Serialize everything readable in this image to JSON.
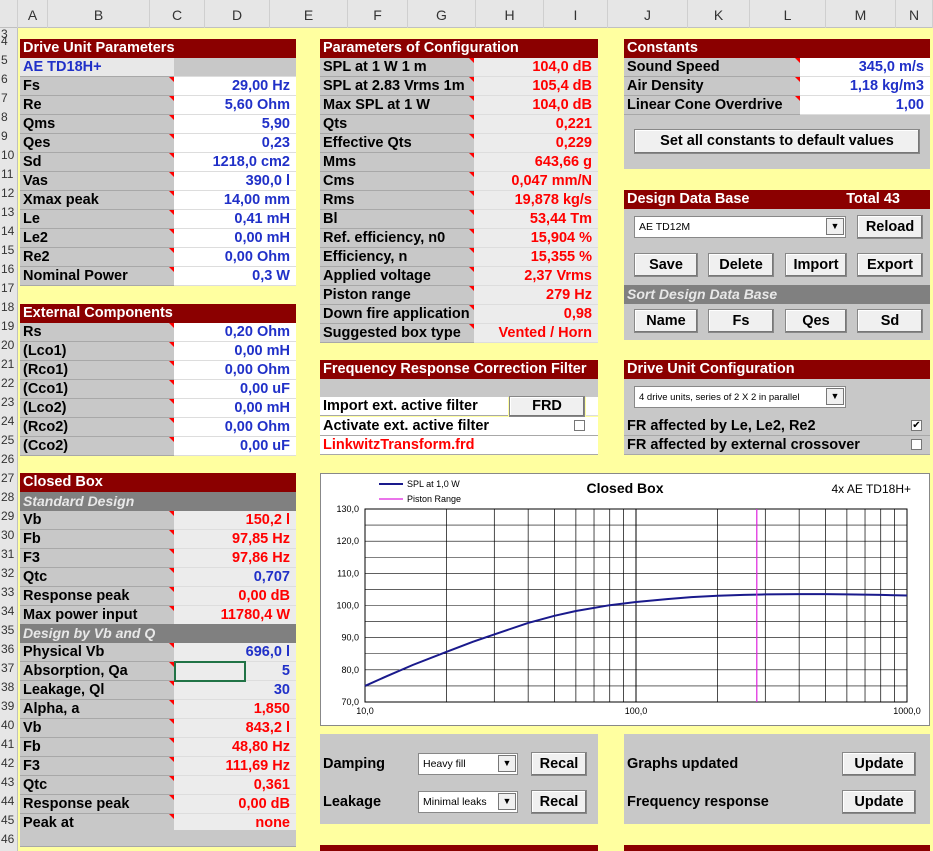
{
  "columns": [
    "A",
    "B",
    "C",
    "D",
    "E",
    "F",
    "G",
    "H",
    "I",
    "J",
    "K",
    "L",
    "M",
    "N"
  ],
  "rows": [
    "3",
    "4",
    "5",
    "6",
    "7",
    "8",
    "9",
    "10",
    "11",
    "12",
    "13",
    "14",
    "15",
    "16",
    "17",
    "18",
    "19",
    "20",
    "21",
    "22",
    "23",
    "24",
    "25",
    "26",
    "27",
    "28",
    "29",
    "30",
    "31",
    "32",
    "33",
    "34",
    "35",
    "36",
    "37",
    "38",
    "39",
    "40",
    "41",
    "42",
    "43",
    "44",
    "45",
    "46"
  ],
  "drive_unit": {
    "title": "Drive Unit Parameters",
    "model": "AE TD18H+",
    "params": [
      {
        "label": "Fs",
        "value": "29,00 Hz"
      },
      {
        "label": "Re",
        "value": "5,60 Ohm"
      },
      {
        "label": "Qms",
        "value": "5,90"
      },
      {
        "label": "Qes",
        "value": "0,23"
      },
      {
        "label": "Sd",
        "value": "1218,0 cm2"
      },
      {
        "label": "Vas",
        "value": "390,0 l"
      },
      {
        "label": "Xmax peak",
        "value": "14,00 mm"
      },
      {
        "label": "Le",
        "value": "0,41 mH"
      },
      {
        "label": "Le2",
        "value": "0,00 mH"
      },
      {
        "label": "Re2",
        "value": "0,00 Ohm"
      },
      {
        "label": "Nominal Power",
        "value": "0,3 W"
      }
    ]
  },
  "external": {
    "title": "External Components",
    "params": [
      {
        "label": "Rs",
        "value": "0,20 Ohm"
      },
      {
        "label": "(Lco1)",
        "value": "0,00 mH"
      },
      {
        "label": "(Rco1)",
        "value": "0,00 Ohm"
      },
      {
        "label": "(Cco1)",
        "value": "0,00 uF"
      },
      {
        "label": "(Lco2)",
        "value": "0,00 mH"
      },
      {
        "label": "(Rco2)",
        "value": "0,00 Ohm"
      },
      {
        "label": "(Cco2)",
        "value": "0,00 uF"
      }
    ]
  },
  "closed_box": {
    "title": "Closed Box",
    "standard_title": "Standard Design",
    "standard": [
      {
        "label": "Vb",
        "value": "150,2 l",
        "color": "red"
      },
      {
        "label": "Fb",
        "value": "97,85 Hz",
        "color": "red"
      },
      {
        "label": "F3",
        "value": "97,86 Hz",
        "color": "red"
      },
      {
        "label": "Qtc",
        "value": "0,707",
        "color": "blue"
      },
      {
        "label": "Response peak",
        "value": "0,00 dB",
        "color": "red"
      },
      {
        "label": "Max power input",
        "value": "11780,4 W",
        "color": "red"
      }
    ],
    "vbq_title": "Design by Vb and Q",
    "vbq": [
      {
        "label": "Physical Vb",
        "value": "696,0 l",
        "color": "blue"
      },
      {
        "label": "Absorption, Qa",
        "value": "5",
        "color": "blue"
      },
      {
        "label": "Leakage, Ql",
        "value": "30",
        "color": "blue"
      },
      {
        "label": "Alpha, a",
        "value": "1,850",
        "color": "red"
      },
      {
        "label": "Vb",
        "value": "843,2 l",
        "color": "red"
      },
      {
        "label": "Fb",
        "value": "48,80 Hz",
        "color": "red"
      },
      {
        "label": "F3",
        "value": "111,69 Hz",
        "color": "red"
      },
      {
        "label": "Qtc",
        "value": "0,361",
        "color": "red"
      },
      {
        "label": "Response peak",
        "value": "0,00 dB",
        "color": "red"
      },
      {
        "label": "Peak at",
        "value": "none",
        "color": "red"
      }
    ]
  },
  "config": {
    "title": "Parameters of Configuration",
    "params": [
      {
        "label": "SPL at 1 W 1 m",
        "value": "104,0 dB"
      },
      {
        "label": "SPL at 2.83 Vrms 1m",
        "value": "105,4 dB"
      },
      {
        "label": "Max SPL at 1 W",
        "value": "104,0 dB"
      },
      {
        "label": "Qts",
        "value": "0,221"
      },
      {
        "label": "Effective Qts",
        "value": "0,229"
      },
      {
        "label": "Mms",
        "value": "643,66 g"
      },
      {
        "label": "Cms",
        "value": "0,047 mm/N"
      },
      {
        "label": "Rms",
        "value": "19,878 kg/s"
      },
      {
        "label": "Bl",
        "value": "53,44 Tm"
      },
      {
        "label": "Ref. efficiency, n0",
        "value": "15,904 %"
      },
      {
        "label": "Efficiency, n",
        "value": "15,355 %"
      },
      {
        "label": "Applied voltage",
        "value": "2,37 Vrms"
      },
      {
        "label": "Piston range",
        "value": "279 Hz"
      },
      {
        "label": "Down fire application",
        "value": "0,98"
      },
      {
        "label": "Suggested box type",
        "value": "Vented / Horn"
      }
    ]
  },
  "frcf": {
    "title": "Frequency Response Correction Filter",
    "import_label": "Import ext. active filter",
    "frd_button": "FRD",
    "activate_label": "Activate ext. active filter",
    "filename": "LinkwitzTransform.frd"
  },
  "constants": {
    "title": "Constants",
    "params": [
      {
        "label": "Sound Speed",
        "value": "345,0 m/s"
      },
      {
        "label": "Air Density",
        "value": "1,18 kg/m3"
      },
      {
        "label": "Linear Cone Overdrive",
        "value": "1,00"
      }
    ],
    "reset_button": "Set all constants to default values"
  },
  "design_db": {
    "title": "Design Data Base",
    "total": "Total 43",
    "selected": "AE TD12M",
    "reload": "Reload",
    "save": "Save",
    "delete": "Delete",
    "import": "Import",
    "export": "Export",
    "sort_title": "Sort Design Data Base",
    "sort_buttons": [
      "Name",
      "Fs",
      "Qes",
      "Sd"
    ]
  },
  "drive_config": {
    "title": "Drive Unit Configuration",
    "selected": "4 drive units, series of 2 X 2 in parallel",
    "fr_le_label": "FR affected by Le, Le2, Re2",
    "fr_le_checked": "✔",
    "fr_xo_label": "FR affected by external crossover"
  },
  "damping": {
    "label": "Damping",
    "selected": "Heavy fill",
    "recal": "Recal"
  },
  "leakage": {
    "label": "Leakage",
    "selected": "Minimal leaks",
    "recal": "Recal"
  },
  "graphs": {
    "label": "Graphs updated",
    "button": "Update"
  },
  "freqresp": {
    "label": "Frequency response",
    "button": "Update"
  },
  "chart_data": {
    "type": "line",
    "title": "Closed Box",
    "subtitle": "4x AE TD18H+",
    "legend": [
      "SPL at 1,0 W",
      "Piston Range"
    ],
    "x_scale": "log",
    "xlim": [
      10,
      1000
    ],
    "ylim": [
      70,
      130
    ],
    "y_ticks": [
      "130,0",
      "120,0",
      "110,0",
      "100,0",
      "90,0",
      "80,0",
      "70,0"
    ],
    "x_ticks": [
      "10,0",
      "100,0",
      "1000,0"
    ],
    "series": [
      {
        "name": "SPL at 1,0 W",
        "color": "#1a1a8c",
        "x": [
          10,
          12,
          15,
          20,
          25,
          30,
          40,
          50,
          60,
          80,
          100,
          130,
          160,
          200,
          250,
          300,
          400,
          500,
          600,
          800,
          1000
        ],
        "y": [
          75.0,
          78.0,
          81.5,
          85.6,
          88.7,
          91.0,
          94.6,
          96.8,
          98.3,
          100.1,
          101.1,
          102.0,
          102.6,
          103.0,
          103.3,
          103.45,
          103.55,
          103.55,
          103.45,
          103.3,
          103.1
        ]
      },
      {
        "name": "Piston Range",
        "color": "#dd22dd",
        "x": [
          279,
          279
        ],
        "y": [
          70,
          130
        ]
      }
    ]
  }
}
